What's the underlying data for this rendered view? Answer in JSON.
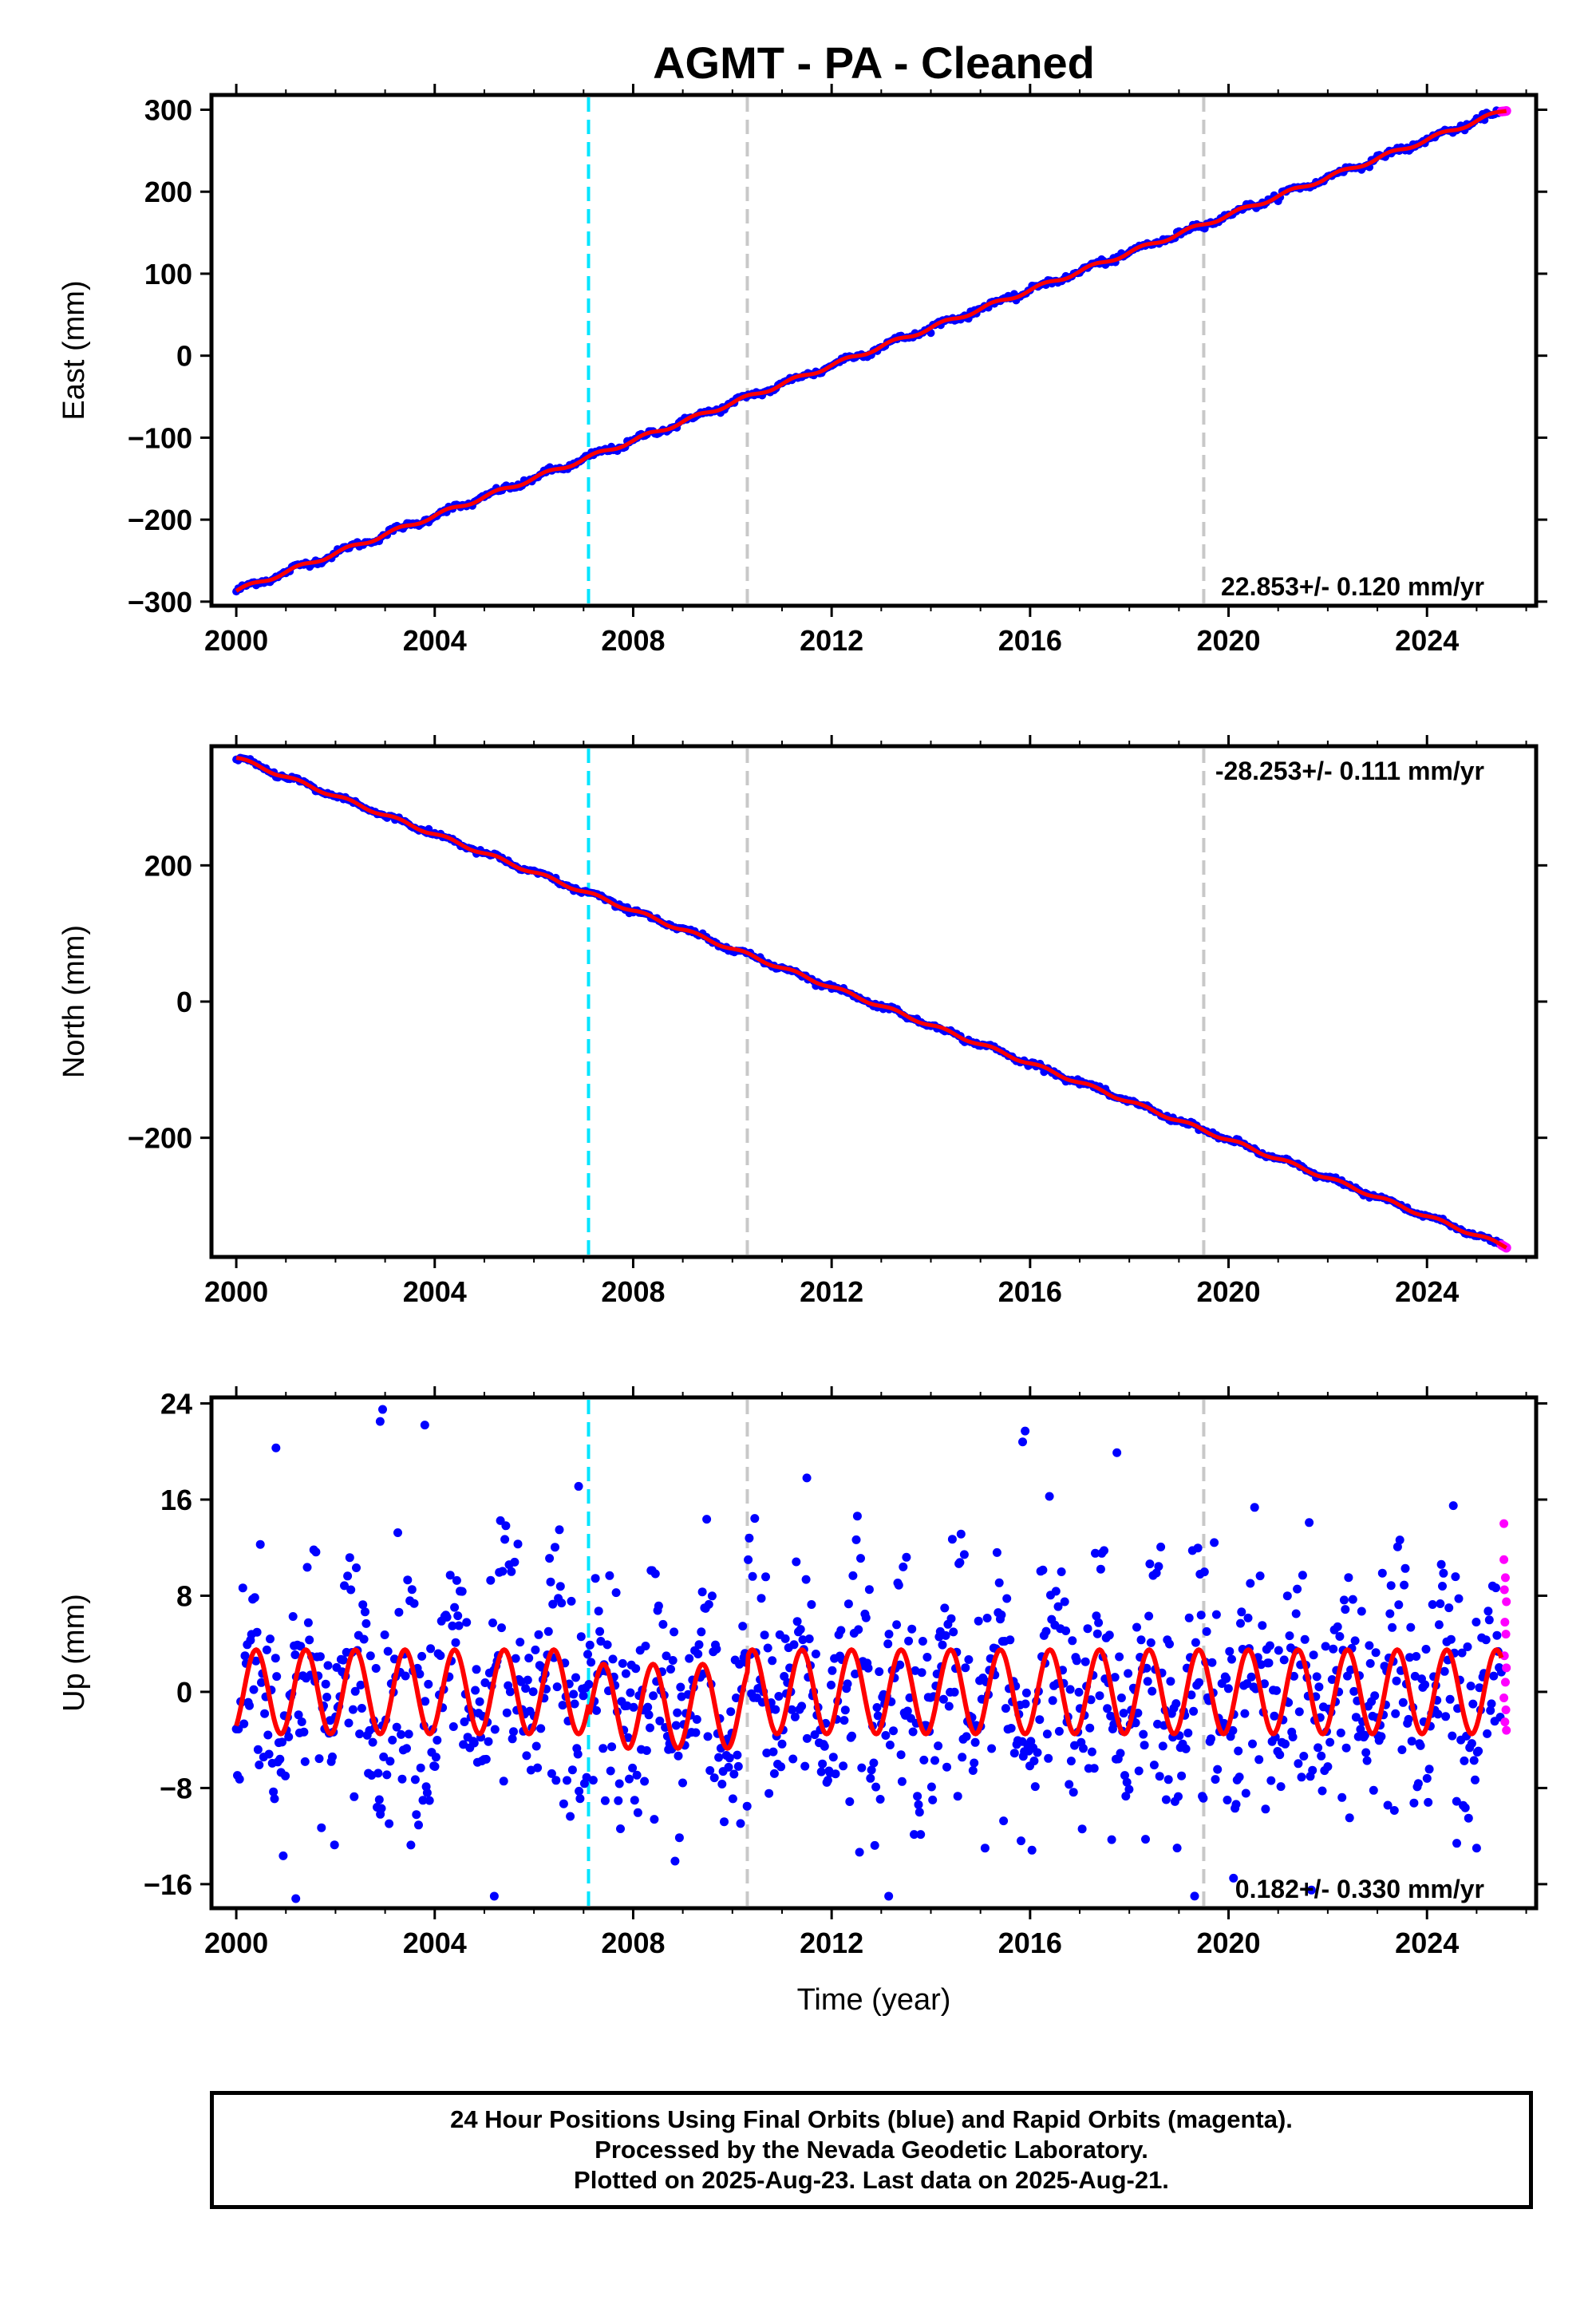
{
  "title": "AGMT  - PA - Cleaned",
  "xlabel": "Time (year)",
  "footer": {
    "line1": "24 Hour Positions Using Final Orbits (blue) and Rapid Orbits (magenta).",
    "line2": "Processed by the Nevada Geodetic Laboratory.",
    "line3": "Plotted on 2025-Aug-23. Last data on 2025-Aug-21."
  },
  "colors": {
    "final_orbits": "#0000ff",
    "rapid_orbits": "#ff00ff",
    "model_fit": "#ff0000",
    "equipment_change": "#00e5ff",
    "other_event": "#c8c8c8"
  },
  "chart_data": [
    {
      "type": "scatter",
      "panel": "east",
      "ylabel": "East (mm)",
      "xlim": [
        1999.5,
        2026.2
      ],
      "ylim": [
        -305,
        318
      ],
      "xticks": [
        "2000",
        "2004",
        "2008",
        "2012",
        "2016",
        "2020",
        "2024"
      ],
      "yticks": [
        "−300",
        "−200",
        "−100",
        "0",
        "100",
        "200",
        "300"
      ],
      "rate": "22.853+/- 0.120 mm/yr",
      "rate_position": "bottom-right",
      "vlines": [
        {
          "x": 2007.1,
          "color": "#00e5ff"
        },
        {
          "x": 2010.3,
          "color": "#c8c8c8"
        },
        {
          "x": 2019.5,
          "color": "#c8c8c8"
        }
      ],
      "series": [
        {
          "name": "final orbits",
          "color": "#0000ff"
        },
        {
          "name": "rapid orbits",
          "color": "#ff00ff"
        },
        {
          "name": "model",
          "color": "#ff0000"
        }
      ],
      "trend": {
        "x": [
          2000.0,
          2025.6
        ],
        "y": [
          -287,
          300
        ]
      }
    },
    {
      "type": "scatter",
      "panel": "north",
      "ylabel": "North (mm)",
      "xlim": [
        1999.5,
        2026.2
      ],
      "ylim": [
        -375,
        375
      ],
      "xticks": [
        "2000",
        "2004",
        "2008",
        "2012",
        "2016",
        "2020",
        "2024"
      ],
      "yticks": [
        "−200",
        "0",
        "200"
      ],
      "rate": "-28.253+/- 0.111 mm/yr",
      "rate_position": "top-right",
      "vlines": [
        {
          "x": 2007.1,
          "color": "#00e5ff"
        },
        {
          "x": 2010.3,
          "color": "#c8c8c8"
        },
        {
          "x": 2019.5,
          "color": "#c8c8c8"
        }
      ],
      "series": [
        {
          "name": "final orbits",
          "color": "#0000ff"
        },
        {
          "name": "rapid orbits",
          "color": "#ff00ff"
        },
        {
          "name": "model",
          "color": "#ff0000"
        }
      ],
      "trend": {
        "x": [
          2000.0,
          2025.6
        ],
        "y": [
          358,
          -360
        ]
      }
    },
    {
      "type": "scatter",
      "panel": "up",
      "ylabel": "Up (mm)",
      "xlim": [
        1999.5,
        2026.2
      ],
      "ylim": [
        -18,
        24.5
      ],
      "xticks": [
        "2000",
        "2004",
        "2008",
        "2012",
        "2016",
        "2020",
        "2024"
      ],
      "yticks": [
        "−16",
        "−8",
        "0",
        "8",
        "16",
        "24"
      ],
      "rate": "0.182+/- 0.330 mm/yr",
      "rate_position": "bottom-right",
      "vlines": [
        {
          "x": 2007.1,
          "color": "#00e5ff"
        },
        {
          "x": 2010.3,
          "color": "#c8c8c8"
        },
        {
          "x": 2019.5,
          "color": "#c8c8c8"
        }
      ],
      "series": [
        {
          "name": "final orbits",
          "color": "#0000ff"
        },
        {
          "name": "rapid orbits",
          "color": "#ff00ff"
        },
        {
          "name": "model",
          "color": "#ff0000"
        }
      ],
      "seasonal": {
        "amplitude_mm": 3.5,
        "period_yr": 1.0,
        "scatter_sd_mm": 4.5
      },
      "outliers": [
        {
          "x": 2002.95,
          "y": 23.5
        },
        {
          "x": 2002.9,
          "y": 22.5
        },
        {
          "x": 2003.8,
          "y": 22.2
        },
        {
          "x": 2000.8,
          "y": 20.3
        },
        {
          "x": 2015.9,
          "y": 21.7
        },
        {
          "x": 2015.85,
          "y": 20.8
        },
        {
          "x": 2017.75,
          "y": 19.9
        },
        {
          "x": 2011.5,
          "y": 17.8
        },
        {
          "x": 2006.9,
          "y": 17.1
        },
        {
          "x": 2001.2,
          "y": -17.2
        },
        {
          "x": 2005.2,
          "y": -17.0
        },
        {
          "x": 2013.15,
          "y": -17.0
        },
        {
          "x": 2020.1,
          "y": -15.5
        },
        {
          "x": 2025.0,
          "y": -13.0
        },
        {
          "x": 2024.6,
          "y": -12.6
        }
      ],
      "rapid_points": [
        {
          "x": 2025.55,
          "y": 14.0
        },
        {
          "x": 2025.55,
          "y": 11.0
        },
        {
          "x": 2025.58,
          "y": 9.5
        },
        {
          "x": 2025.56,
          "y": 8.5
        },
        {
          "x": 2025.6,
          "y": 7.5
        },
        {
          "x": 2025.57,
          "y": 5.8
        },
        {
          "x": 2025.59,
          "y": 4.8
        },
        {
          "x": 2025.56,
          "y": 3.0
        },
        {
          "x": 2025.6,
          "y": 2.0
        },
        {
          "x": 2025.58,
          "y": 0.8
        },
        {
          "x": 2025.55,
          "y": -0.5
        },
        {
          "x": 2025.59,
          "y": -1.5
        },
        {
          "x": 2025.57,
          "y": -2.5
        },
        {
          "x": 2025.6,
          "y": -3.2
        }
      ]
    }
  ]
}
